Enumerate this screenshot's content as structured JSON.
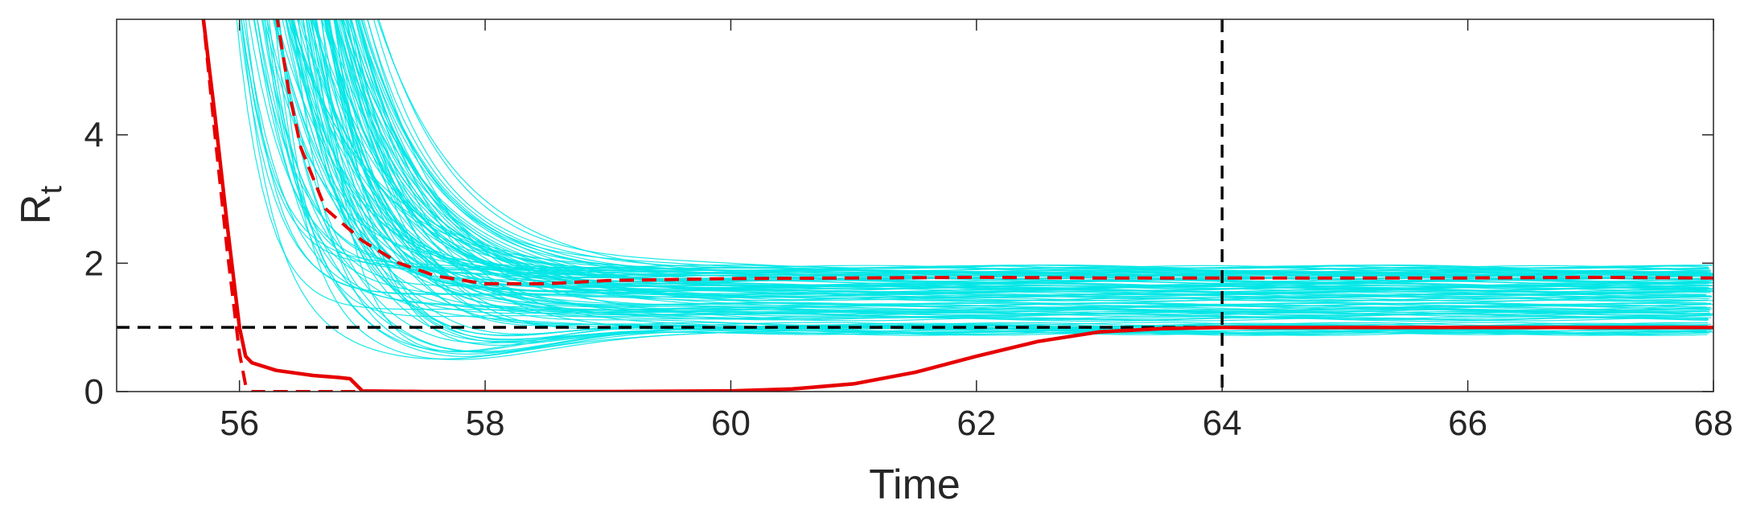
{
  "chart_data": {
    "type": "line",
    "xlabel": "Time",
    "ylabel": "R",
    "ylabel_subscript": "t",
    "xlim": [
      55,
      68
    ],
    "ylim": [
      0,
      5.8
    ],
    "xticks": [
      56,
      58,
      60,
      62,
      64,
      66,
      68
    ],
    "yticks": [
      0,
      2,
      4
    ],
    "grid": false,
    "reference_lines": [
      {
        "orientation": "horizontal",
        "value": 1,
        "style": "dashed",
        "color": "#000000"
      },
      {
        "orientation": "vertical",
        "value": 64,
        "style": "dashed",
        "color": "#000000"
      }
    ],
    "ensemble": {
      "color": "#00e5e5",
      "count": 120,
      "start": 12,
      "low_band": [
        0.9,
        1.05
      ],
      "high_band": [
        1.05,
        1.95
      ],
      "decay_range": [
        0.22,
        0.75
      ]
    },
    "series": [
      {
        "role": "median",
        "color": "#e60000",
        "style": "solid",
        "x": [
          55.7,
          55.8,
          55.9,
          56.0,
          56.05,
          56.1,
          56.3,
          56.6,
          56.8,
          56.9,
          57.0,
          57.5,
          58.0,
          59.0,
          60.0,
          60.5,
          61.0,
          61.5,
          62.0,
          62.5,
          63.0,
          63.5,
          64.0,
          65.0,
          66.0,
          67.0,
          68.0
        ],
        "values": [
          5.9,
          4.3,
          2.6,
          1.0,
          0.55,
          0.45,
          0.33,
          0.25,
          0.22,
          0.2,
          0.01,
          0.0,
          0.0,
          0.0,
          0.01,
          0.04,
          0.12,
          0.3,
          0.55,
          0.78,
          0.93,
          0.98,
          1.0,
          1.0,
          1.0,
          1.0,
          1.0
        ]
      },
      {
        "role": "lower-bound",
        "color": "#e60000",
        "style": "dashed",
        "x": [
          55.7,
          55.8,
          55.9,
          56.0,
          56.05,
          56.1,
          56.3,
          57.0,
          58.0,
          59.0,
          59.5
        ],
        "values": [
          5.9,
          4.0,
          2.2,
          0.6,
          0.1,
          0.0,
          0.0,
          0.0,
          0.0,
          0.0,
          0.0
        ]
      },
      {
        "role": "upper-bound",
        "color": "#e60000",
        "style": "dashed",
        "x": [
          56.3,
          56.4,
          56.5,
          56.7,
          57.0,
          57.3,
          57.6,
          58.0,
          58.5,
          59.0,
          60.0,
          61.0,
          62.0,
          63.0,
          64.0,
          65.0,
          66.0,
          67.0,
          68.0
        ],
        "values": [
          5.9,
          4.7,
          3.8,
          2.85,
          2.35,
          2.0,
          1.8,
          1.68,
          1.68,
          1.73,
          1.76,
          1.77,
          1.78,
          1.77,
          1.77,
          1.77,
          1.77,
          1.78,
          1.77
        ]
      }
    ]
  }
}
